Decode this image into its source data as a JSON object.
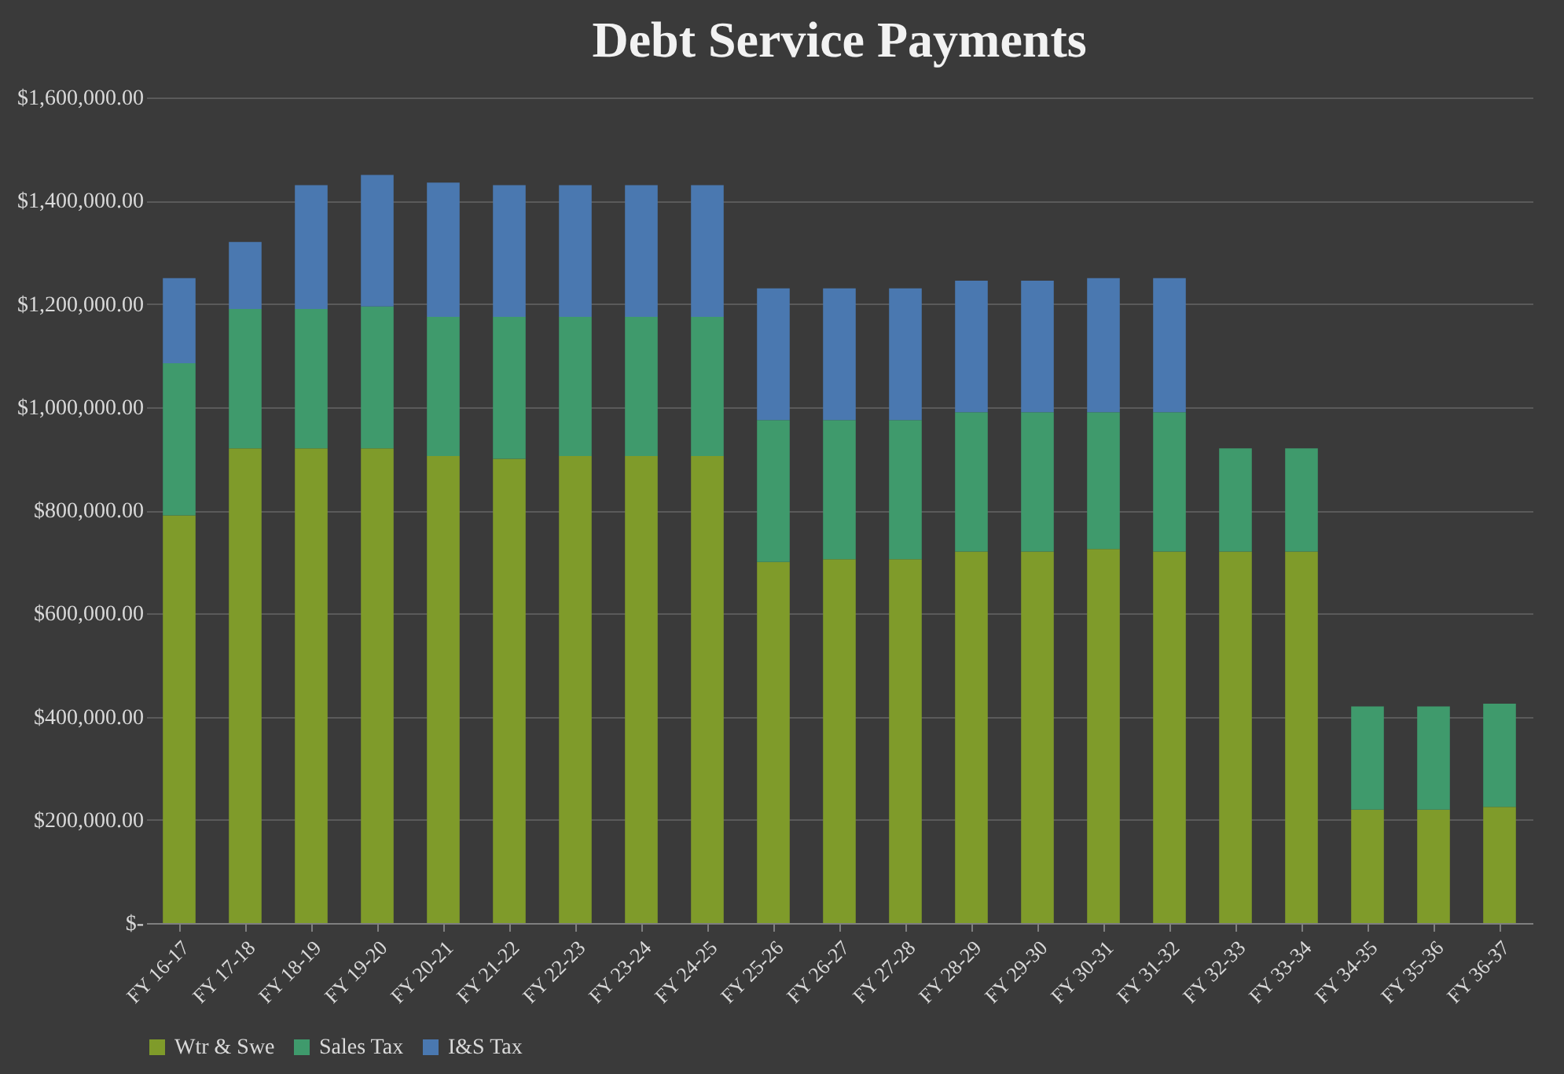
{
  "chart_data": {
    "type": "bar",
    "stacked": true,
    "title": "Debt Service Payments",
    "categories": [
      "FY 16-17",
      "FY 17-18",
      "FY 18-19",
      "FY 19-20",
      "FY 20-21",
      "FY 21-22",
      "FY 22-23",
      "FY 23-24",
      "FY 24-25",
      "FY 25-26",
      "FY 26-27",
      "FY 27-28",
      "FY 28-29",
      "FY 29-30",
      "FY 30-31",
      "FY 31-32",
      "FY 32-33",
      "FY 33-34",
      "FY 34-35",
      "FY 35-36",
      "FY 36-37"
    ],
    "series": [
      {
        "name": "Wtr & Swe",
        "color": "#7f9b2a",
        "values": [
          790000,
          920000,
          920000,
          920000,
          905000,
          900000,
          905000,
          905000,
          905000,
          700000,
          705000,
          705000,
          720000,
          720000,
          725000,
          720000,
          720000,
          720000,
          220000,
          220000,
          225000
        ]
      },
      {
        "name": "Sales Tax",
        "color": "#3f9a6c",
        "values": [
          295000,
          270000,
          270000,
          275000,
          270000,
          275000,
          270000,
          270000,
          270000,
          275000,
          270000,
          270000,
          270000,
          270000,
          265000,
          270000,
          200000,
          200000,
          200000,
          200000,
          200000
        ]
      },
      {
        "name": "I&S Tax",
        "color": "#4a78b0",
        "values": [
          165000,
          130000,
          240000,
          255000,
          260000,
          255000,
          255000,
          255000,
          255000,
          255000,
          255000,
          255000,
          255000,
          255000,
          260000,
          260000,
          null,
          null,
          null,
          null,
          null
        ]
      }
    ],
    "ylim": [
      0,
      1600000
    ],
    "yticks": [
      {
        "value": 0,
        "label": "$-"
      },
      {
        "value": 200000,
        "label": "$200,000.00"
      },
      {
        "value": 400000,
        "label": "$400,000.00"
      },
      {
        "value": 600000,
        "label": "$600,000.00"
      },
      {
        "value": 800000,
        "label": "$800,000.00"
      },
      {
        "value": 1000000,
        "label": "$1,000,000.00"
      },
      {
        "value": 1200000,
        "label": "$1,200,000.00"
      },
      {
        "value": 1400000,
        "label": "$1,400,000.00"
      },
      {
        "value": 1600000,
        "label": "$1,600,000.00"
      }
    ],
    "grid": "y",
    "legend": "bottom"
  }
}
